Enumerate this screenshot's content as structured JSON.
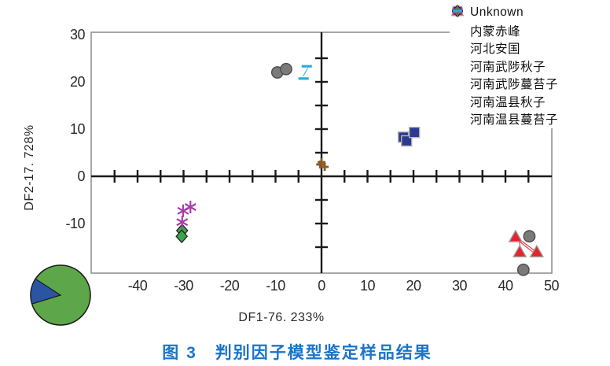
{
  "figure": {
    "caption": "图 3　判别因子模型鉴定样品结果",
    "caption_color": "#1b74c9"
  },
  "chart_data": {
    "type": "scatter",
    "title": "",
    "xlabel": "DF1-76. 233%",
    "ylabel": "DF2-17. 728%",
    "xlim": [
      -51,
      51
    ],
    "ylim": [
      -20.5,
      30.5
    ],
    "x_ticks": [
      -40,
      -30,
      -20,
      -10,
      0,
      10,
      20,
      30,
      40,
      50
    ],
    "y_ticks": [
      30,
      20,
      10,
      0,
      -10
    ],
    "minor_tick_step": 5,
    "grid": false,
    "axes_style": "centered cross lines with outer box, legend top-right",
    "series": [
      {
        "name": "Unknown",
        "marker": "circle",
        "color": "#7a7a7a",
        "stroke": "#4d4d4d",
        "points": [
          [
            -9.6,
            22.0
          ],
          [
            -7.7,
            22.7
          ],
          [
            45.2,
            -12.7
          ],
          [
            43.9,
            -19.8
          ]
        ]
      },
      {
        "name": "内蒙赤峰",
        "marker": "square",
        "color": "#2b3990",
        "stroke": "#b3b3b3",
        "points": [
          [
            17.8,
            8.3
          ],
          [
            18.5,
            7.5
          ],
          [
            20.2,
            9.3
          ]
        ]
      },
      {
        "name": "河北安国",
        "marker": "triangle",
        "color": "#e8222d",
        "stroke": "#9a9a9a",
        "points": [
          [
            42.2,
            -12.8
          ],
          [
            43.1,
            -16.0
          ],
          [
            46.8,
            -16.0
          ]
        ]
      },
      {
        "name": "河南武陟秋子",
        "marker": "diamond",
        "color": "#3ba648",
        "stroke": "#222222",
        "points": [
          [
            -30.3,
            -11.5
          ],
          [
            -30.4,
            -12.7
          ]
        ]
      },
      {
        "name": "河南武陟蔓苔子",
        "marker": "star6",
        "color": "#a93ba9",
        "stroke": "#a93ba9",
        "points": [
          [
            -28.5,
            -6.5
          ],
          [
            -30.1,
            -7.3
          ],
          [
            -30.3,
            -9.7
          ]
        ]
      },
      {
        "name": "河南温县秋子",
        "marker": "plus",
        "color": "#8a5a28",
        "stroke": "#8a5a28",
        "points": [
          [
            0.0,
            3.0
          ],
          [
            -0.3,
            2.5
          ],
          [
            0.7,
            2.0
          ]
        ]
      },
      {
        "name": "河南温县蔓苔子",
        "marker": "dash",
        "color": "#29abe2",
        "stroke": "#29abe2",
        "points": [
          [
            -3.2,
            23.3
          ],
          [
            -3.9,
            20.7
          ]
        ]
      }
    ],
    "connector_lines": [
      {
        "color": "#e8222d",
        "from": [
          42.8,
          -13.2
        ],
        "to": [
          46.3,
          -15.7
        ]
      },
      {
        "color": "#e8222d",
        "from": [
          42.9,
          -13.7
        ],
        "to": [
          45.9,
          -16.0
        ]
      },
      {
        "color": "#e8222d",
        "from": [
          42.9,
          -13.5
        ],
        "to": [
          43.3,
          -15.2
        ]
      },
      {
        "color": "#29abe2",
        "from": [
          -3.0,
          22.9
        ],
        "to": [
          -4.0,
          21.2
        ]
      }
    ],
    "inset_pie": {
      "slices": [
        {
          "label": "green-majority",
          "pct": 86,
          "color": "#5ea64a"
        },
        {
          "label": "blue-minority",
          "pct": 14,
          "color": "#2b55a3"
        }
      ],
      "blue_start_deg": 147,
      "blue_end_deg": 197,
      "outline_color": "#1a1a1a"
    },
    "colors": {
      "axis_line": "#1a1a1a",
      "plot_border": "#8a8a8a",
      "tick_text": "#2a2a2a"
    }
  }
}
